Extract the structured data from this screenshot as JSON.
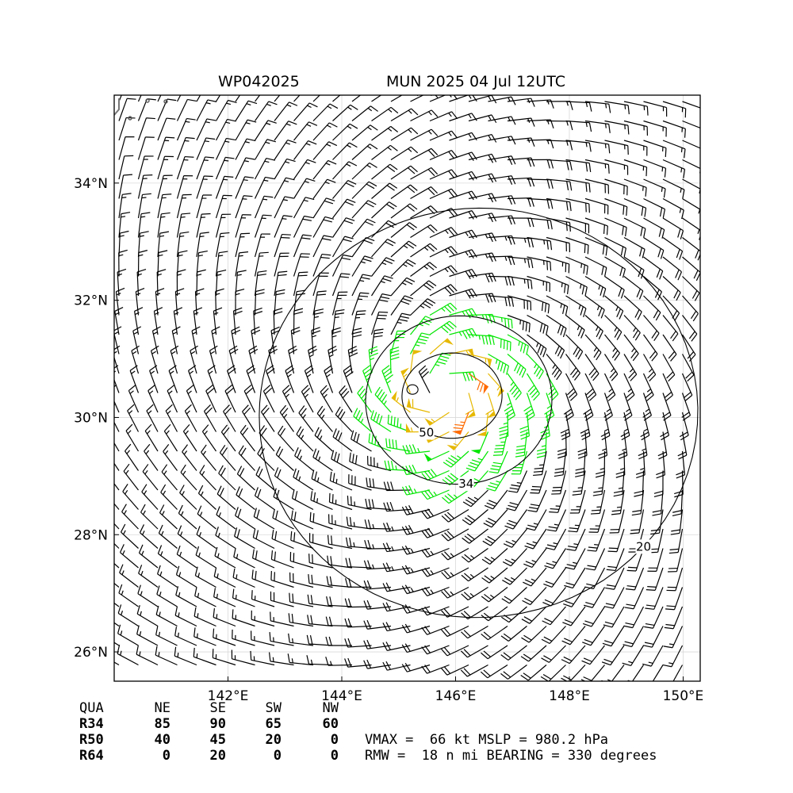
{
  "title": {
    "storm_id": "WP042025",
    "storm_info": "MUN 2025 04 Jul 12UTC"
  },
  "map": {
    "lon_range": [
      140.0,
      150.3
    ],
    "lat_range": [
      25.5,
      35.5
    ],
    "lon_ticks": [
      {
        "value": 142,
        "label": "142°E"
      },
      {
        "value": 144,
        "label": "144°E"
      },
      {
        "value": 146,
        "label": "146°E"
      },
      {
        "value": 148,
        "label": "148°E"
      },
      {
        "value": 150,
        "label": "150°E"
      }
    ],
    "lat_ticks": [
      {
        "value": 26,
        "label": "26°N"
      },
      {
        "value": 28,
        "label": "28°N"
      },
      {
        "value": 30,
        "label": "30°N"
      },
      {
        "value": 32,
        "label": "32°N"
      },
      {
        "value": 34,
        "label": "34°N"
      }
    ],
    "grid": true,
    "storm_center": {
      "lon": 145.8,
      "lat": 30.45
    }
  },
  "wind_contours": [
    {
      "kt": 20,
      "label": "20",
      "color": "#000000"
    },
    {
      "kt": 34,
      "label": "34",
      "color": "#000000"
    },
    {
      "kt": 50,
      "label": "50",
      "color": "#000000"
    }
  ],
  "barb_colors": {
    "below_34": "#000000",
    "34_to_50": "#00e600",
    "50_to_64": "#e6b800",
    "above_64": "#ff6a00"
  },
  "wind_radii": {
    "headers": [
      "QUA",
      "NE",
      "SE",
      "SW",
      "NW"
    ],
    "rows": [
      {
        "label": "R34",
        "values": [
          "85",
          "90",
          "65",
          "60"
        ]
      },
      {
        "label": "R50",
        "values": [
          "40",
          "45",
          "20",
          "0"
        ]
      },
      {
        "label": "R64",
        "values": [
          "0",
          "20",
          "0",
          "0"
        ]
      }
    ]
  },
  "stats": {
    "line1": "VMAX =  66 kt MSLP = 980.2 hPa",
    "line2": "RMW =  18 n mi BEARING = 330 degrees"
  }
}
